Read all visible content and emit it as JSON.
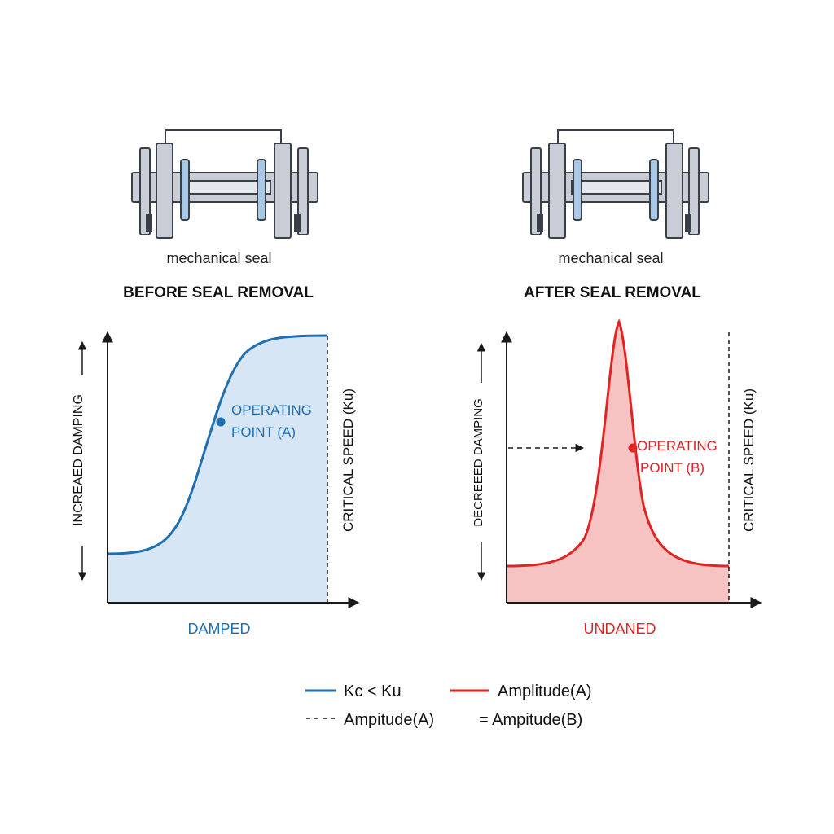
{
  "left_panel": {
    "component_label": "mechanical seal",
    "heading": "BEFORE SEAL REMOVAL",
    "y_axis_label": "INCREAED DAMPING",
    "vertical_line_label": "CRITICAL SPEED (Ku)",
    "point_label_line1": "OPERATING",
    "point_label_line2": "POINT (A)",
    "caption": "DAMPED"
  },
  "right_panel": {
    "component_label": "mechanical seal",
    "heading": "AFTER SEAL REMOVAL",
    "y_axis_label": "DECREEED DAMPING",
    "vertical_line_label": "CRITICAL SPEED (Ku)",
    "point_label_line1": "OPERATING",
    "point_label_line2": "POINT (B)",
    "caption": "UNDANED"
  },
  "legend": {
    "item1": "Kc < Ku",
    "item2": "Amplitude(A)",
    "item3": "Ampitude(A)",
    "item4": "= Ampitude(B)"
  },
  "colors": {
    "blue": "#1f6fb2",
    "blue_fill": "#d6e6f5",
    "red": "#e02424",
    "red_fill": "#f7c2c2",
    "metal": "#c9ced6",
    "metal_dark": "#3a3f47",
    "seal_blue": "#a9c8e6"
  }
}
